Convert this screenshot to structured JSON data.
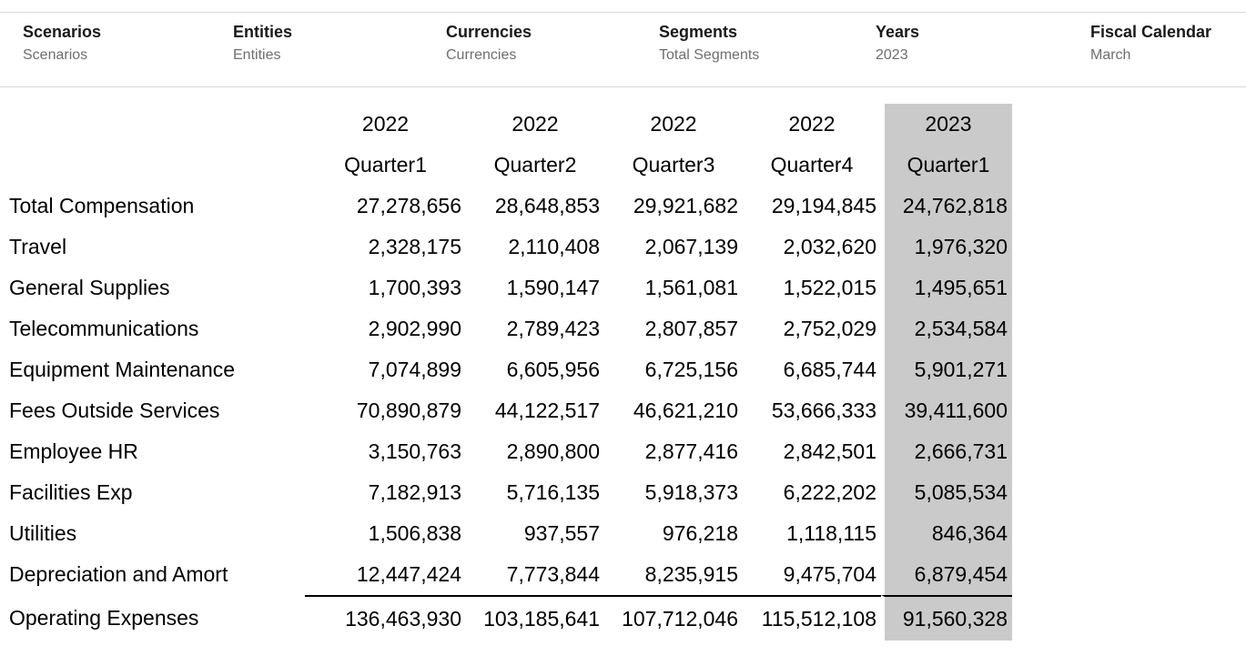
{
  "pov": {
    "items": [
      {
        "label": "Scenarios",
        "value": "Scenarios"
      },
      {
        "label": "Entities",
        "value": "Entities"
      },
      {
        "label": "Currencies",
        "value": "Currencies"
      },
      {
        "label": "Segments",
        "value": "Total Segments"
      },
      {
        "label": "Years",
        "value": "2023"
      },
      {
        "label": "Fiscal Calendar",
        "value": "March"
      }
    ]
  },
  "grid": {
    "columns": [
      {
        "year": "2022",
        "quarter": "Quarter1",
        "highlight": false
      },
      {
        "year": "2022",
        "quarter": "Quarter2",
        "highlight": false
      },
      {
        "year": "2022",
        "quarter": "Quarter3",
        "highlight": false
      },
      {
        "year": "2022",
        "quarter": "Quarter4",
        "highlight": false
      },
      {
        "year": "2023",
        "quarter": "Quarter1",
        "highlight": true
      }
    ],
    "rows": [
      {
        "label": "Total Compensation",
        "total": false,
        "values": [
          "27,278,656",
          "28,648,853",
          "29,921,682",
          "29,194,845",
          "24,762,818"
        ]
      },
      {
        "label": "Travel",
        "total": false,
        "values": [
          "2,328,175",
          "2,110,408",
          "2,067,139",
          "2,032,620",
          "1,976,320"
        ]
      },
      {
        "label": "General Supplies",
        "total": false,
        "values": [
          "1,700,393",
          "1,590,147",
          "1,561,081",
          "1,522,015",
          "1,495,651"
        ]
      },
      {
        "label": "Telecommunications",
        "total": false,
        "values": [
          "2,902,990",
          "2,789,423",
          "2,807,857",
          "2,752,029",
          "2,534,584"
        ]
      },
      {
        "label": "Equipment Maintenance",
        "total": false,
        "values": [
          "7,074,899",
          "6,605,956",
          "6,725,156",
          "6,685,744",
          "5,901,271"
        ]
      },
      {
        "label": "Fees Outside Services",
        "total": false,
        "values": [
          "70,890,879",
          "44,122,517",
          "46,621,210",
          "53,666,333",
          "39,411,600"
        ]
      },
      {
        "label": "Employee HR",
        "total": false,
        "values": [
          "3,150,763",
          "2,890,800",
          "2,877,416",
          "2,842,501",
          "2,666,731"
        ]
      },
      {
        "label": "Facilities Exp",
        "total": false,
        "values": [
          "7,182,913",
          "5,716,135",
          "5,918,373",
          "6,222,202",
          "5,085,534"
        ]
      },
      {
        "label": "Utilities",
        "total": false,
        "values": [
          "1,506,838",
          "937,557",
          "976,218",
          "1,118,115",
          "846,364"
        ]
      },
      {
        "label": "Depreciation and Amort",
        "total": false,
        "values": [
          "12,447,424",
          "7,773,844",
          "8,235,915",
          "9,475,704",
          "6,879,454"
        ]
      },
      {
        "label": "Operating Expenses",
        "total": true,
        "values": [
          "136,463,930",
          "103,185,641",
          "107,712,046",
          "115,512,108",
          "91,560,328"
        ]
      }
    ]
  },
  "colors": {
    "highlight_column": "#cacaca",
    "pov_border": "#d8d8d8",
    "pov_value_text": "#6e6e6e",
    "grid_text": "#000000"
  }
}
